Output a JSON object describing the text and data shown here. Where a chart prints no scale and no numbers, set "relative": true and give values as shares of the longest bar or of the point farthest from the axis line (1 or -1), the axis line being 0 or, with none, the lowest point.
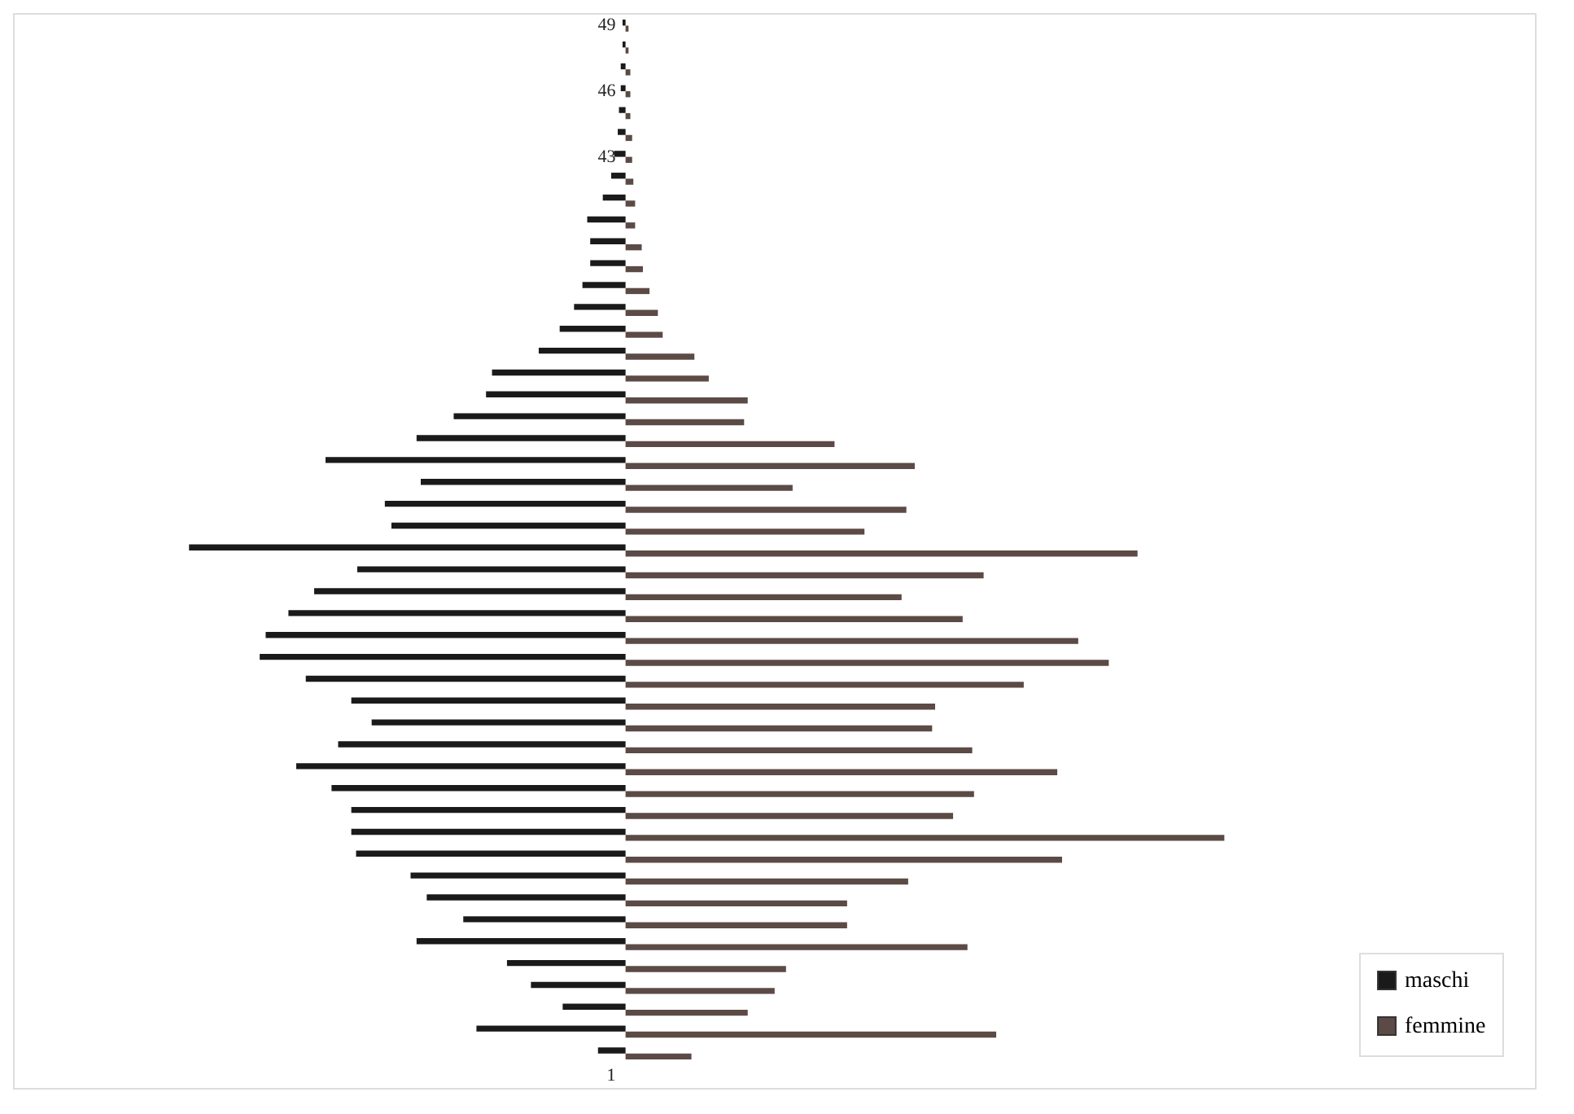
{
  "chart_data": {
    "type": "bar",
    "orientation": "horizontal",
    "relative": true,
    "legend": "right",
    "categories": [
      "49",
      null,
      null,
      "46",
      null,
      null,
      "43",
      null,
      null,
      null,
      null,
      null,
      null,
      null,
      null,
      null,
      null,
      null,
      null,
      null,
      null,
      null,
      null,
      null,
      null,
      null,
      null,
      null,
      null,
      null,
      null,
      null,
      null,
      null,
      null,
      null,
      null,
      null,
      null,
      null,
      null,
      null,
      null,
      null,
      null,
      null,
      null,
      null,
      "1"
    ],
    "series": [
      {
        "name": "maschi",
        "color": "#1a1a1a",
        "values": [
          -0.005,
          -0.005,
          -0.008,
          -0.008,
          -0.011,
          -0.013,
          -0.019,
          -0.024,
          -0.038,
          -0.064,
          -0.059,
          -0.059,
          -0.072,
          -0.086,
          -0.11,
          -0.145,
          -0.223,
          -0.233,
          -0.287,
          -0.349,
          -0.501,
          -0.342,
          -0.402,
          -0.391,
          -0.729,
          -0.448,
          -0.52,
          -0.563,
          -0.601,
          -0.611,
          -0.534,
          -0.458,
          -0.424,
          -0.48,
          -0.55,
          -0.491,
          -0.458,
          -0.458,
          -0.45,
          -0.359,
          -0.332,
          -0.271,
          -0.349,
          -0.198,
          -0.158,
          -0.105,
          -0.249,
          -0.046,
          0
        ]
      },
      {
        "name": "femmine",
        "color": "#5b4a45",
        "values": [
          0.005,
          0.005,
          0.008,
          0.008,
          0.008,
          0.011,
          0.011,
          0.013,
          0.016,
          0.016,
          0.027,
          0.029,
          0.04,
          0.054,
          0.062,
          0.115,
          0.139,
          0.204,
          0.198,
          0.349,
          0.483,
          0.279,
          0.469,
          0.399,
          0.855,
          0.598,
          0.461,
          0.563,
          0.756,
          0.807,
          0.665,
          0.517,
          0.512,
          0.579,
          0.721,
          0.582,
          0.547,
          1,
          0.729,
          0.472,
          0.37,
          0.37,
          0.571,
          0.268,
          0.249,
          0.204,
          0.619,
          0.11,
          0
        ]
      }
    ]
  }
}
